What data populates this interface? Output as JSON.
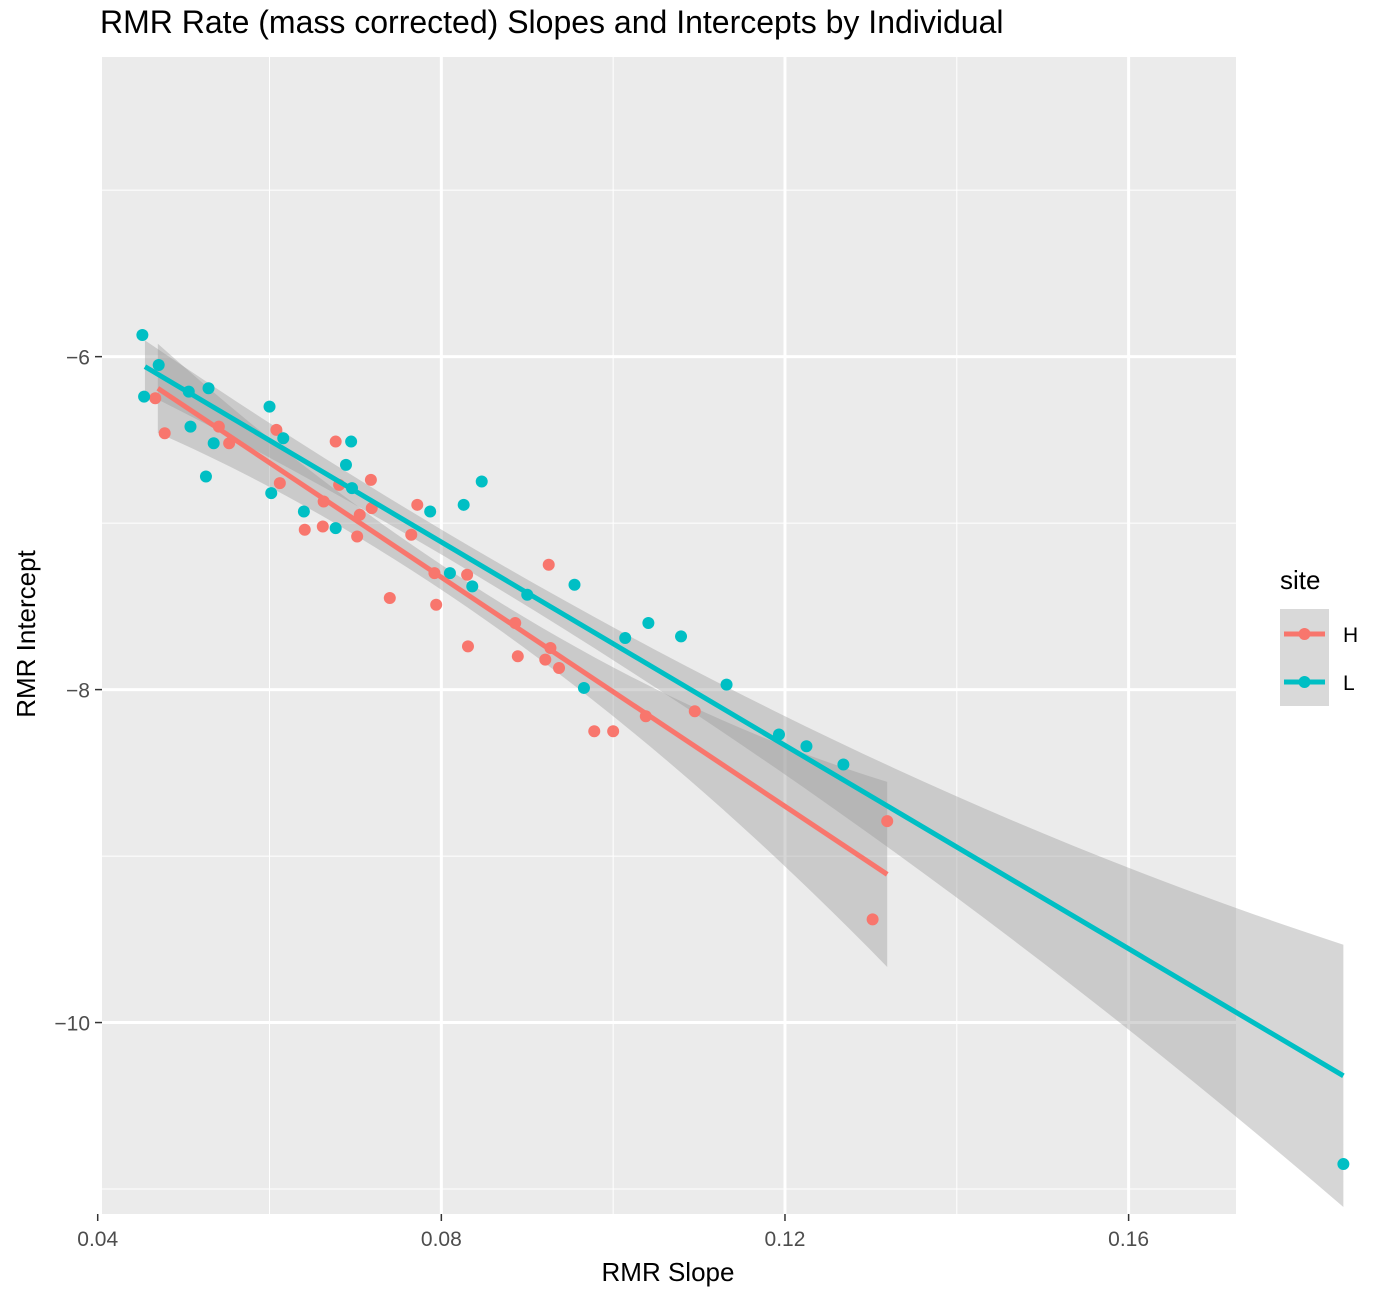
{
  "chart_data": {
    "type": "scatter",
    "title": "RMR Rate (mass corrected) Slopes and Intercepts by Individual",
    "xlabel": "RMR Slope",
    "ylabel": "RMR Intercept",
    "xlim": [
      0.0405,
      0.1725
    ],
    "ylim": [
      -11.15,
      -4.2
    ],
    "x_ticks": [
      0.04,
      0.08,
      0.12,
      0.16
    ],
    "x_tick_labels": [
      "0.04",
      "0.08",
      "0.12",
      "0.16"
    ],
    "y_ticks": [
      -6,
      -8,
      -10
    ],
    "y_tick_labels": [
      "−6",
      "−8",
      "−10"
    ],
    "grid": true,
    "panel_background": "#ebebeb",
    "legend": {
      "title": "site",
      "position": "right"
    },
    "series": [
      {
        "name": "H",
        "color": "#f8766d",
        "points": [
          [
            0.0467,
            -6.25
          ],
          [
            0.0478,
            -6.46
          ],
          [
            0.0541,
            -6.42
          ],
          [
            0.0553,
            -6.52
          ],
          [
            0.0608,
            -6.44
          ],
          [
            0.0612,
            -6.76
          ],
          [
            0.0641,
            -7.04
          ],
          [
            0.0662,
            -7.02
          ],
          [
            0.0663,
            -6.87
          ],
          [
            0.0677,
            -6.51
          ],
          [
            0.0681,
            -6.77
          ],
          [
            0.0702,
            -7.08
          ],
          [
            0.0705,
            -6.95
          ],
          [
            0.0718,
            -6.74
          ],
          [
            0.0719,
            -6.91
          ],
          [
            0.074,
            -7.45
          ],
          [
            0.0765,
            -7.07
          ],
          [
            0.0772,
            -6.89
          ],
          [
            0.0792,
            -7.3
          ],
          [
            0.0794,
            -7.49
          ],
          [
            0.083,
            -7.31
          ],
          [
            0.0831,
            -7.74
          ],
          [
            0.0886,
            -7.6
          ],
          [
            0.0889,
            -7.8
          ],
          [
            0.0921,
            -7.82
          ],
          [
            0.0925,
            -7.25
          ],
          [
            0.0927,
            -7.75
          ],
          [
            0.0937,
            -7.87
          ],
          [
            0.0978,
            -8.25
          ],
          [
            0.1,
            -8.25
          ],
          [
            0.1038,
            -8.16
          ],
          [
            0.1095,
            -8.13
          ],
          [
            0.1302,
            -9.38
          ],
          [
            0.1319,
            -8.79
          ]
        ],
        "fit": {
          "x": [
            0.047,
            0.1319
          ],
          "y": [
            -6.19,
            -9.11
          ]
        }
      },
      {
        "name": "L",
        "color": "#00bfc4",
        "points": [
          [
            0.0452,
            -5.87
          ],
          [
            0.0454,
            -6.24
          ],
          [
            0.0471,
            -6.05
          ],
          [
            0.0506,
            -6.21
          ],
          [
            0.0508,
            -6.42
          ],
          [
            0.0526,
            -6.72
          ],
          [
            0.0529,
            -6.19
          ],
          [
            0.0535,
            -6.52
          ],
          [
            0.06,
            -6.3
          ],
          [
            0.0602,
            -6.82
          ],
          [
            0.0616,
            -6.49
          ],
          [
            0.064,
            -6.93
          ],
          [
            0.0677,
            -7.03
          ],
          [
            0.0689,
            -6.65
          ],
          [
            0.0695,
            -6.51
          ],
          [
            0.0696,
            -6.79
          ],
          [
            0.0787,
            -6.93
          ],
          [
            0.081,
            -7.3
          ],
          [
            0.0826,
            -6.89
          ],
          [
            0.0836,
            -7.38
          ],
          [
            0.0847,
            -6.75
          ],
          [
            0.09,
            -7.43
          ],
          [
            0.0955,
            -7.37
          ],
          [
            0.0966,
            -7.99
          ],
          [
            0.1014,
            -7.69
          ],
          [
            0.1041,
            -7.6
          ],
          [
            0.1079,
            -7.68
          ],
          [
            0.1132,
            -7.97
          ],
          [
            0.1193,
            -8.27
          ],
          [
            0.1225,
            -8.34
          ],
          [
            0.1268,
            -8.45
          ],
          [
            0.185,
            -10.85
          ]
        ],
        "fit": {
          "x": [
            0.0455,
            0.185
          ],
          "y": [
            -6.06,
            -10.32
          ]
        }
      }
    ]
  }
}
